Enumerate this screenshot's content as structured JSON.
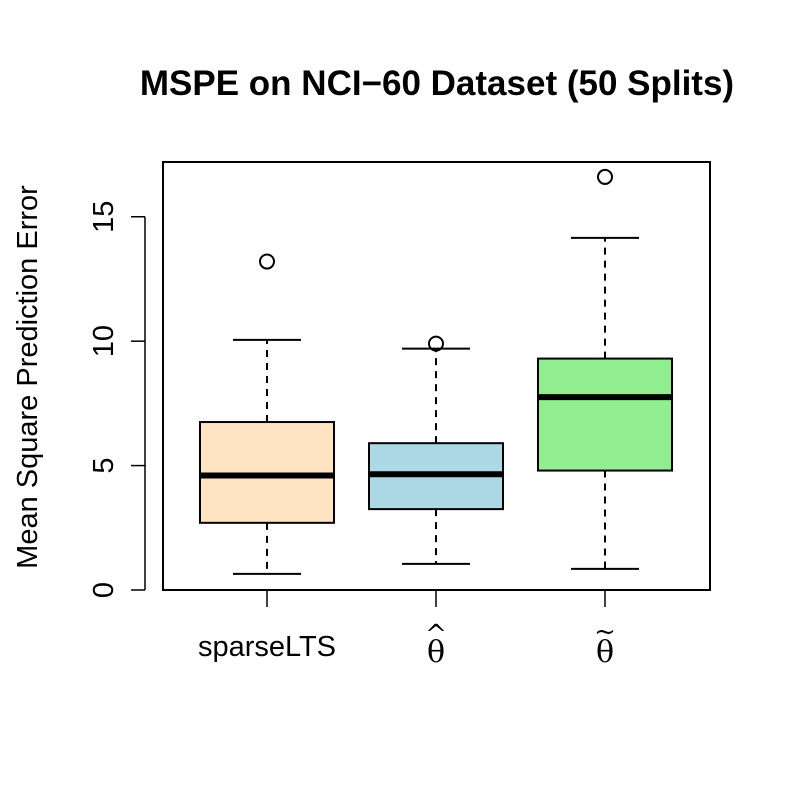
{
  "chart_data": {
    "type": "boxplot",
    "title": "MSPE on NCI−60 Dataset (50 Splits)",
    "ylabel": "Mean Square Prediction Error",
    "xlabel": "",
    "ylim": [
      0,
      17.2
    ],
    "yticks": [
      0,
      5,
      10,
      15
    ],
    "grid": false,
    "categories": [
      {
        "name": "sparseLTS",
        "label_base": "sparseLTS",
        "label_accent": "",
        "color": "#FFE4C4",
        "whisker_low": 0.65,
        "q1": 2.7,
        "median": 4.6,
        "q3": 6.75,
        "whisker_high": 10.05,
        "outliers": [
          13.2
        ]
      },
      {
        "name": "theta-hat",
        "label_base": "θ",
        "label_accent": "^",
        "color": "#ADD8E6",
        "whisker_low": 1.05,
        "q1": 3.25,
        "median": 4.65,
        "q3": 5.9,
        "whisker_high": 9.7,
        "outliers": [
          9.9
        ]
      },
      {
        "name": "theta-tilde",
        "label_base": "θ",
        "label_accent": "~",
        "color": "#90EE90",
        "whisker_low": 0.85,
        "q1": 4.8,
        "median": 7.75,
        "q3": 9.3,
        "whisker_high": 14.15,
        "outliers": [
          16.6
        ]
      }
    ]
  }
}
